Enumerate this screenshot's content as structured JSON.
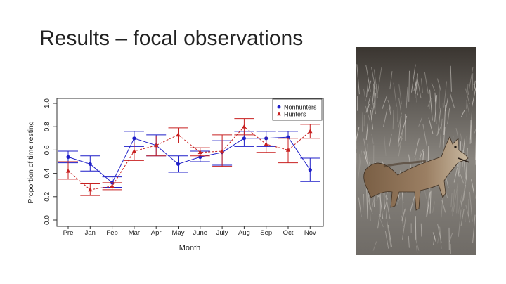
{
  "slide": {
    "title": "Results – focal observations"
  },
  "photo": {
    "subject": "coyote-photo"
  },
  "chart_data": {
    "type": "line",
    "xlabel": "Month",
    "ylabel": "Proportion of time resting",
    "categories": [
      "Pre",
      "Jan",
      "Feb",
      "Mar",
      "Apr",
      "May",
      "June",
      "July",
      "Aug",
      "Sep",
      "Oct",
      "Nov"
    ],
    "yticks": [
      "0.0",
      "0.2",
      "0.4",
      "0.6",
      "0.8",
      "1.0"
    ],
    "ylim": [
      0,
      1
    ],
    "legend_position": "top-right",
    "series": [
      {
        "name": "Nonhunters",
        "color": "#1f1fc8",
        "marker": "circle",
        "line": "solid",
        "values": [
          0.54,
          0.48,
          0.32,
          0.7,
          0.64,
          0.48,
          0.54,
          0.58,
          0.7,
          0.7,
          0.71,
          0.43
        ],
        "err_low": [
          0.49,
          0.42,
          0.28,
          0.63,
          0.55,
          0.41,
          0.5,
          0.47,
          0.63,
          0.63,
          0.66,
          0.33
        ],
        "err_high": [
          0.59,
          0.55,
          0.37,
          0.76,
          0.73,
          0.55,
          0.59,
          0.68,
          0.76,
          0.76,
          0.76,
          0.53
        ]
      },
      {
        "name": "Hunters",
        "color": "#c82020",
        "marker": "triangle",
        "line": "dashed",
        "values": [
          0.42,
          0.26,
          0.29,
          0.59,
          0.64,
          0.73,
          0.58,
          0.59,
          0.8,
          0.65,
          0.6,
          0.76
        ],
        "err_low": [
          0.35,
          0.21,
          0.26,
          0.51,
          0.55,
          0.66,
          0.55,
          0.46,
          0.73,
          0.58,
          0.49,
          0.7
        ],
        "err_high": [
          0.5,
          0.31,
          0.32,
          0.66,
          0.72,
          0.79,
          0.62,
          0.73,
          0.87,
          0.72,
          0.7,
          0.82
        ]
      }
    ]
  }
}
